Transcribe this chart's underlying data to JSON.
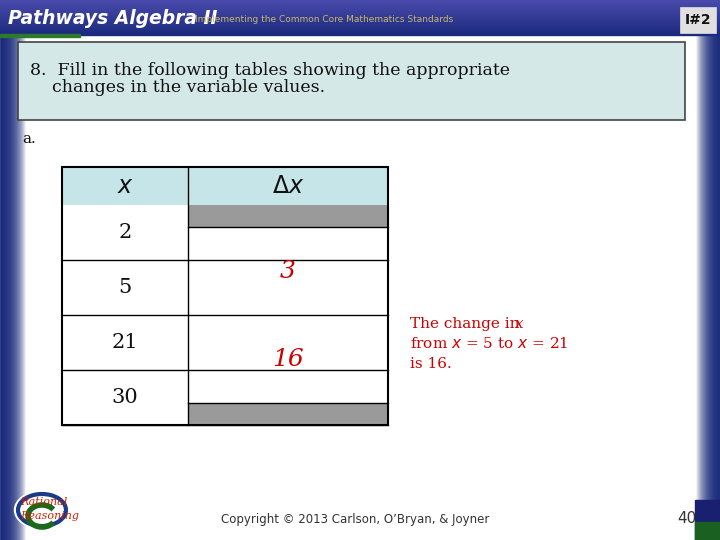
{
  "title_text": "I#2",
  "header_title": "Pathways Algebra II",
  "header_subtitle": "Implementing the Common Core Mathematics Standards",
  "question_text_line1": "8.  Fill in the following tables showing the appropriate",
  "question_text_line2": "    changes in the variable values.",
  "label_a": "a.",
  "col1_header": "x",
  "col2_header": "Δx",
  "x_values": [
    "2",
    "5",
    "21",
    "30"
  ],
  "delta_val1": "3",
  "delta_val2": "16",
  "annotation_line1": "The change in ",
  "annotation_italic": "x",
  "annotation_line2": "from ",
  "annotation_line3": "is 16.",
  "copyright": "Copyright © 2013 Carlson, O’Bryan, & Joyner",
  "page_num": "40",
  "bg_main": "#ffffff",
  "bg_left_strip": "#2a3a7c",
  "bg_right_strip": "#1a2a6c",
  "header_bg": "#2a3a8c",
  "header_gradient_mid": "#4a5aac",
  "question_box_bg": "#d5e8e8",
  "table_header_bg": "#c5e5e8",
  "table_gray_bg": "#9a9a9a",
  "table_white_bg": "#ffffff",
  "red_color": "#cc0000",
  "dark_text": "#111111",
  "header_title_color": "#ffffff",
  "header_subtitle_color": "#c8b868"
}
